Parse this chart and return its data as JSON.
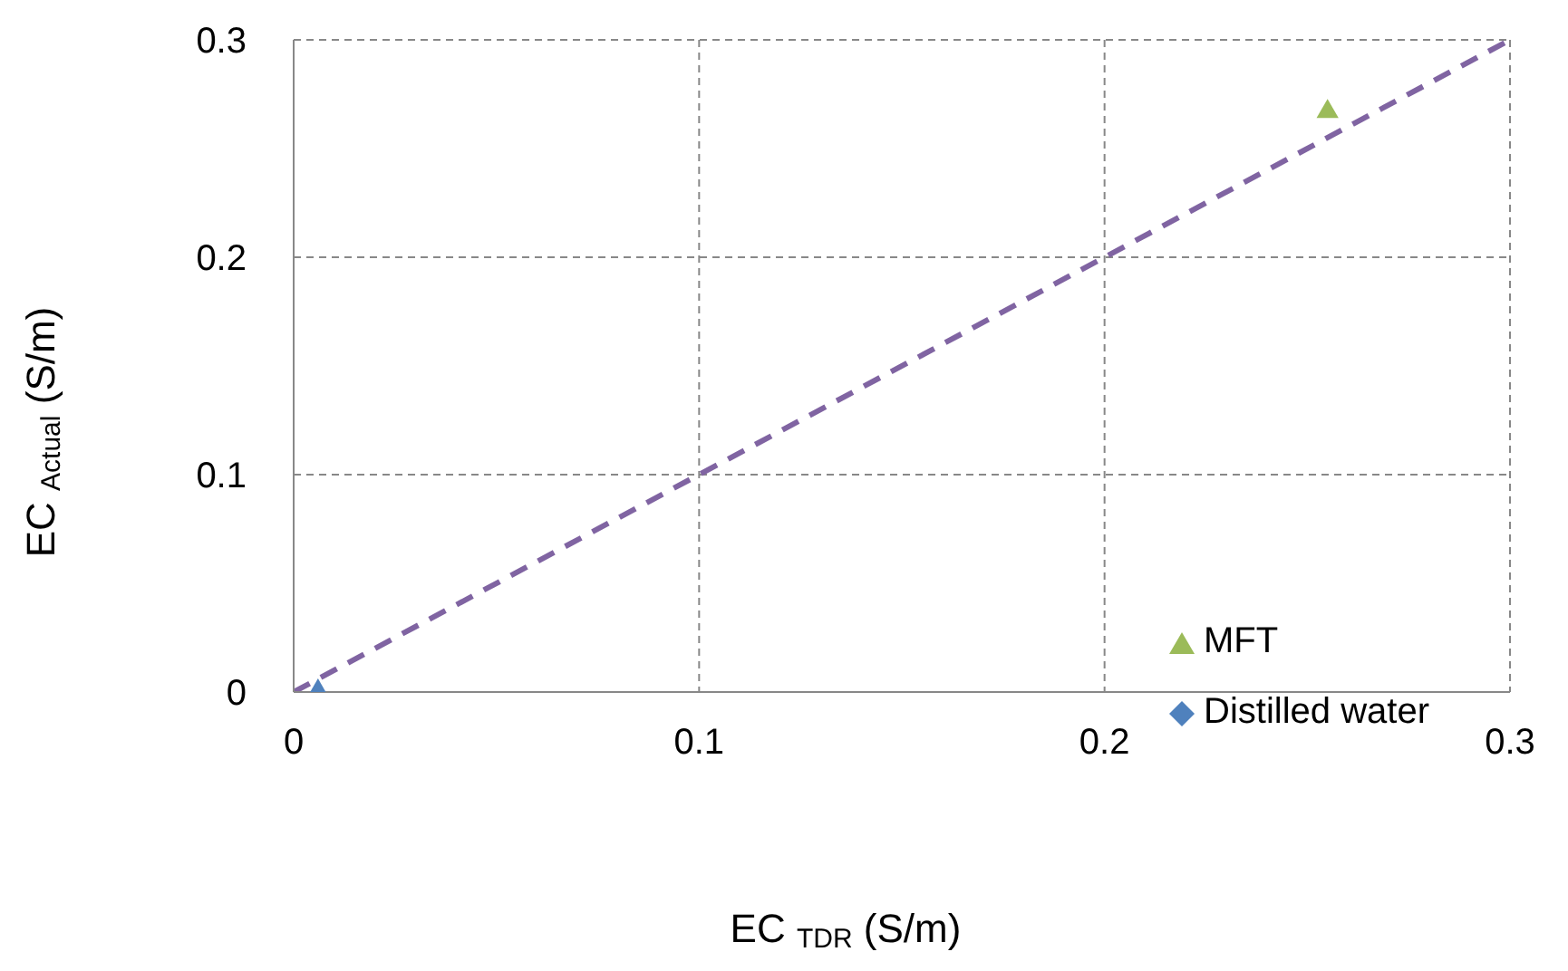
{
  "chart_data": {
    "type": "scatter",
    "xlabel": "EC $_{TDR}$ (S/m)",
    "ylabel": "EC $_{Actual}$ (S/m)",
    "xlim": [
      0,
      0.3
    ],
    "ylim": [
      0,
      0.3
    ],
    "xticks": [
      0,
      0.1,
      0.2,
      0.3
    ],
    "yticks": [
      0,
      0.1,
      0.2,
      0.3
    ],
    "grid": true,
    "legend": "bottom right",
    "series": [
      {
        "name": "MFT",
        "marker": "triangle",
        "color": "#9bbb59",
        "x": [
          0.255
        ],
        "values": [
          0.267
        ]
      },
      {
        "name": "Distilled water",
        "marker": "diamond",
        "color": "#4f81bd",
        "x": [
          0.006
        ],
        "values": [
          0
        ]
      },
      {
        "type": "line",
        "color": "#8064a2",
        "line_style": "dashed",
        "marker": "none",
        "x": [
          0,
          0.3
        ],
        "values": [
          0,
          0.3
        ]
      }
    ]
  }
}
